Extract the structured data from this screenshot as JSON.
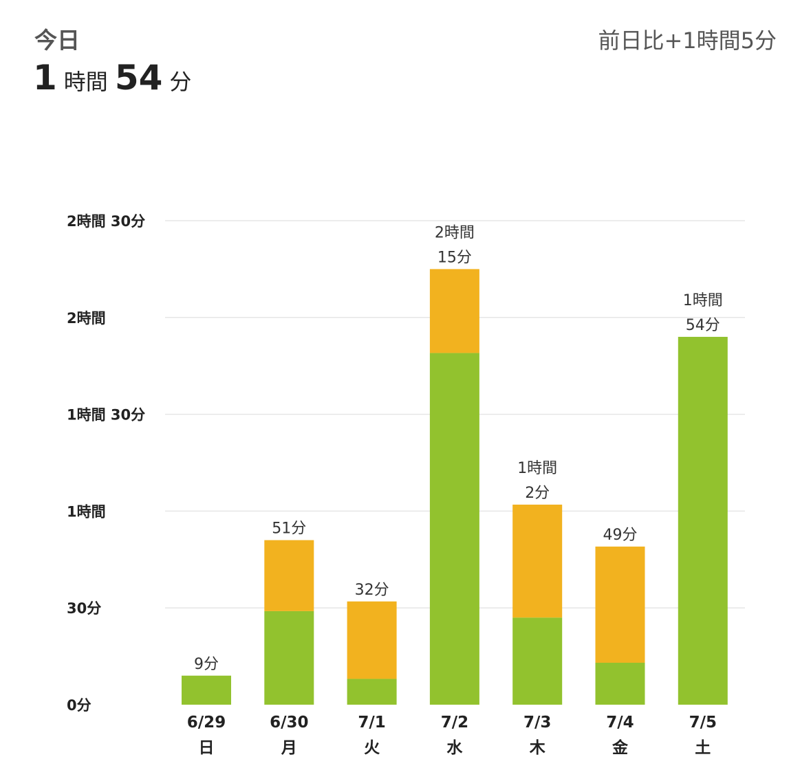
{
  "header": {
    "title": "今日",
    "total_hours": "1",
    "hours_unit": "時間",
    "total_minutes": "54",
    "minutes_unit": "分",
    "comparison": "前日比+1時間5分"
  },
  "chart_data": {
    "type": "bar",
    "stacked": true,
    "unit": "minutes",
    "categories": [
      {
        "date": "6/29",
        "weekday": "日"
      },
      {
        "date": "6/30",
        "weekday": "月"
      },
      {
        "date": "7/1",
        "weekday": "火"
      },
      {
        "date": "7/2",
        "weekday": "水"
      },
      {
        "date": "7/3",
        "weekday": "木"
      },
      {
        "date": "7/4",
        "weekday": "金"
      },
      {
        "date": "7/5",
        "weekday": "土"
      }
    ],
    "series": [
      {
        "color": "#92c22e",
        "values": [
          9,
          29,
          8,
          109,
          27,
          13,
          114
        ]
      },
      {
        "color": "#f2b21f",
        "values": [
          0,
          22,
          24,
          26,
          35,
          36,
          0
        ]
      }
    ],
    "totals": [
      9,
      51,
      32,
      135,
      62,
      49,
      114
    ],
    "data_labels": [
      [
        "9分"
      ],
      [
        "51分"
      ],
      [
        "32分"
      ],
      [
        "2時間",
        "15分"
      ],
      [
        "1時間",
        "2分"
      ],
      [
        "49分"
      ],
      [
        "1時間",
        "54分"
      ]
    ],
    "y_ticks": [
      {
        "value": 0,
        "label": "0分"
      },
      {
        "value": 30,
        "label": "30分"
      },
      {
        "value": 60,
        "label": "1時間"
      },
      {
        "value": 90,
        "label": "1時間 30分"
      },
      {
        "value": 120,
        "label": "2時間"
      },
      {
        "value": 150,
        "label": "2時間 30分"
      }
    ],
    "ylim": [
      0,
      150
    ],
    "grid": true,
    "legend": "none"
  }
}
